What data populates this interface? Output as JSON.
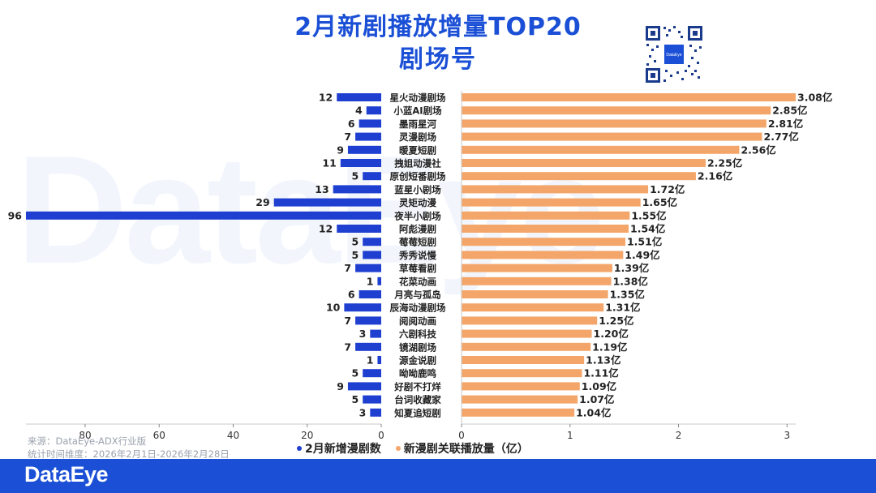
{
  "title": {
    "line1": "2月新剧播放增量TOP20",
    "line2": "剧场号"
  },
  "watermark": "DataEye",
  "qr_logo_text": "DataEye",
  "source": {
    "line1": "来源：DataEye-ADX行业版",
    "line2": "统计时间维度：2026年2月1日-2026年2月28日"
  },
  "footer": {
    "logo": "DataEye"
  },
  "colors": {
    "left_bar": "#1f3fd1",
    "right_bar": "#f4a66a",
    "title": "#1a4fd6"
  },
  "chart_data": {
    "type": "bar",
    "orientation": "horizontal-butterfly",
    "categories": [
      "星火动漫剧场",
      "小蓝AI剧场",
      "墨雨星河",
      "灵漫剧场",
      "暖夏短剧",
      "拽姐动漫社",
      "原创短番剧场",
      "蓝星小剧场",
      "灵矩动漫",
      "夜半小剧场",
      "阿彪漫剧",
      "莓莓短剧",
      "秀秀说慢",
      "草莓看剧",
      "花菜动画",
      "月亮与孤岛",
      "辰海动漫剧场",
      "阅阅动画",
      "六剧科技",
      "镜湖剧场",
      "源金说剧",
      "呦呦鹿鸣",
      "好剧不打烊",
      "台词收藏家",
      "知夏追短剧"
    ],
    "series": [
      {
        "name": "2月新增漫剧数",
        "values": [
          12,
          4,
          6,
          7,
          9,
          11,
          5,
          13,
          29,
          96,
          12,
          5,
          5,
          7,
          1,
          6,
          10,
          7,
          3,
          7,
          1,
          5,
          9,
          5,
          3
        ]
      },
      {
        "name": "新漫剧关联播放量（亿）",
        "values": [
          3.08,
          2.85,
          2.81,
          2.77,
          2.56,
          2.25,
          2.16,
          1.72,
          1.65,
          1.55,
          1.54,
          1.51,
          1.49,
          1.39,
          1.38,
          1.35,
          1.31,
          1.25,
          1.2,
          1.19,
          1.13,
          1.11,
          1.09,
          1.07,
          1.04
        ],
        "labels": [
          "3.08亿",
          "2.85亿",
          "2.81亿",
          "2.77亿",
          "2.56亿",
          "2.25亿",
          "2.16亿",
          "1.72亿",
          "1.65亿",
          "1.55亿",
          "1.54亿",
          "1.51亿",
          "1.49亿",
          "1.39亿",
          "1.38亿",
          "1.35亿",
          "1.31亿",
          "1.25亿",
          "1.20亿",
          "1.19亿",
          "1.13亿",
          "1.11亿",
          "1.09亿",
          "1.07亿",
          "1.04亿"
        ]
      }
    ],
    "left_axis": {
      "ticks": [
        "80",
        "60",
        "40",
        "20",
        "0"
      ],
      "xlim": [
        96,
        0
      ]
    },
    "right_axis": {
      "ticks": [
        "0",
        "1",
        "2",
        "3"
      ],
      "xlim": [
        0,
        3.08
      ]
    },
    "legend": [
      "2月新增漫剧数",
      "新漫剧关联播放量（亿）"
    ],
    "legend_position": "bottom"
  }
}
